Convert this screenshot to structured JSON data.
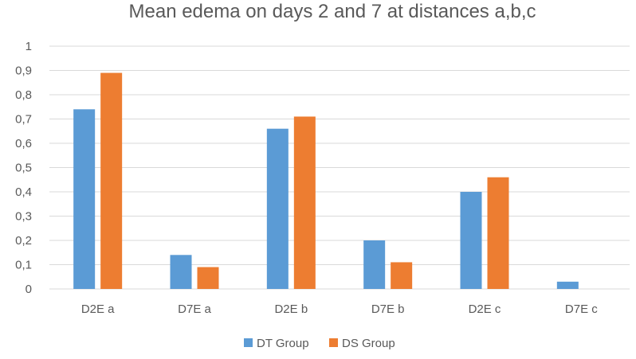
{
  "chart_data": {
    "type": "bar",
    "title": "Mean edema on days 2 and 7 at distances a,b,c",
    "xlabel": "",
    "ylabel": "",
    "categories": [
      "D2E a",
      "D7E a",
      "D2E b",
      "D7E b",
      "D2E c",
      "D7E c"
    ],
    "series": [
      {
        "name": "DT Group",
        "color": "#5b9bd5",
        "values": [
          0.74,
          0.14,
          0.66,
          0.2,
          0.4,
          0.03
        ]
      },
      {
        "name": "DS Group",
        "color": "#ed7d31",
        "values": [
          0.89,
          0.09,
          0.71,
          0.11,
          0.46,
          0
        ]
      }
    ],
    "ylim": [
      0,
      1
    ],
    "yticks": [
      "0",
      "0,1",
      "0,2",
      "0,3",
      "0,4",
      "0,5",
      "0,6",
      "0,7",
      "0,8",
      "0,9",
      "1"
    ],
    "grid": true,
    "legend_position": "bottom"
  }
}
